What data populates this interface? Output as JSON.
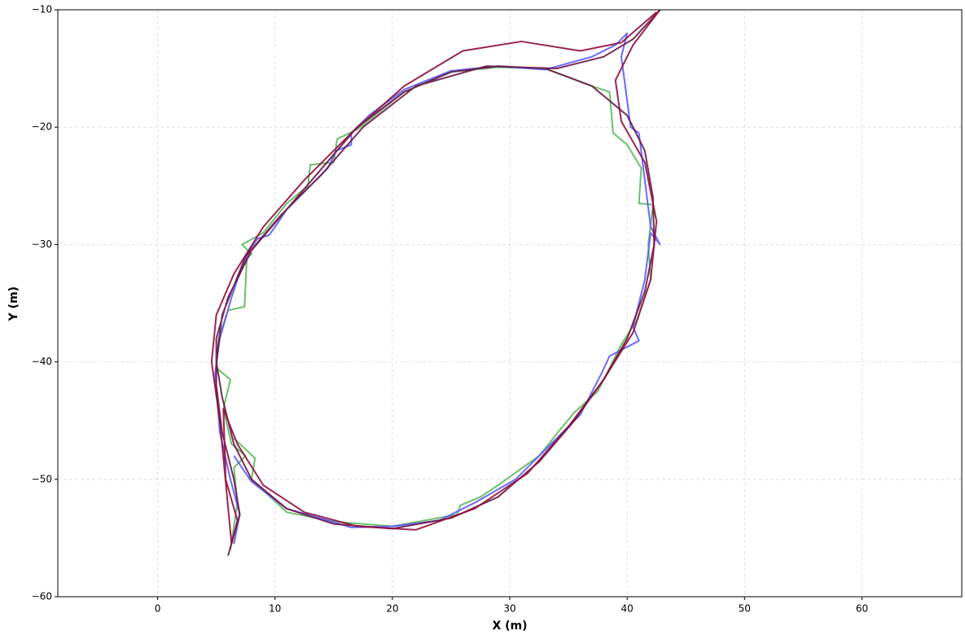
{
  "chart_data": {
    "type": "line",
    "xlabel": "X (m)",
    "ylabel": "Y (m)",
    "xlim": [
      -8.5,
      68.5
    ],
    "ylim": [
      -60,
      -10
    ],
    "xticks": [
      0,
      10,
      20,
      30,
      40,
      50,
      60
    ],
    "yticks": [
      {
        "value": -60,
        "label": "−60"
      },
      {
        "value": -50,
        "label": "−50"
      },
      {
        "value": -40,
        "label": "−40"
      },
      {
        "value": -30,
        "label": "−30"
      },
      {
        "value": -20,
        "label": "−20"
      },
      {
        "value": -10,
        "label": "−10"
      }
    ],
    "grid": true,
    "series": [
      {
        "color": "#5cb85c",
        "x": [
          6.2,
          6.8,
          6.5,
          7.5,
          6.3,
          5.6,
          6.2,
          5.0,
          5.2,
          6.0,
          7.4,
          7.6,
          8.0,
          7.2,
          9.0,
          11.0,
          12.8,
          13.0,
          15.0,
          15.3,
          17.0,
          21.0,
          25.0,
          29.0,
          33.0,
          37.0,
          38.5,
          38.8,
          40.0,
          41.2,
          41.0,
          42.2,
          41.8,
          42.0,
          40.8,
          39.5,
          37.5,
          35.5,
          34.5,
          32.5,
          29.0,
          27.5,
          25.8,
          25.5,
          20.0,
          15.0,
          11.0,
          8.0,
          8.3,
          6.5
        ],
        "values": [
          -56.0,
          -52.0,
          -49.0,
          -48.0,
          -47.0,
          -44.0,
          -41.5,
          -40.5,
          -38.0,
          -35.6,
          -35.3,
          -31.2,
          -30.8,
          -30.0,
          -29.0,
          -26.5,
          -25.0,
          -23.2,
          -23.0,
          -21.0,
          -20.2,
          -17.0,
          -15.3,
          -14.9,
          -15.0,
          -16.5,
          -17.0,
          -20.5,
          -21.5,
          -23.5,
          -26.5,
          -26.6,
          -30.0,
          -33.0,
          -36.5,
          -38.5,
          -42.5,
          -44.3,
          -45.5,
          -48.0,
          -50.5,
          -51.5,
          -52.2,
          -53.0,
          -54.0,
          -53.6,
          -52.8,
          -50.0,
          -48.2,
          -46.5
        ]
      },
      {
        "color": "#5a5aff",
        "x": [
          6.5,
          7.0,
          6.2,
          5.3,
          4.9,
          5.3,
          6.3,
          6.8,
          7.8,
          8.5,
          9.5,
          10.0,
          11.0,
          13.0,
          14.5,
          15.2,
          16.5,
          16.5,
          18.0,
          21.0,
          25.0,
          29.0,
          33.0,
          37.0,
          39.0,
          40.0,
          39.5,
          40.3,
          41.0,
          42.0,
          42.8,
          42.0,
          41.5,
          40.5,
          41.0,
          38.5,
          37.8,
          36.0,
          33.0,
          30.5,
          27.0,
          24.0,
          20.0,
          16.5,
          14.5,
          11.0,
          8.0,
          6.5
        ],
        "values": [
          -55.5,
          -53.0,
          -50.0,
          -46.0,
          -41.0,
          -38.0,
          -34.5,
          -33.0,
          -30.5,
          -29.5,
          -29.2,
          -28.5,
          -27.0,
          -25.0,
          -23.5,
          -22.0,
          -21.5,
          -20.5,
          -19.0,
          -16.8,
          -15.2,
          -14.8,
          -15.1,
          -14.0,
          -13.0,
          -12.0,
          -14.0,
          -20.0,
          -20.5,
          -28.5,
          -30.0,
          -29.0,
          -33.0,
          -37.0,
          -38.2,
          -39.5,
          -41.0,
          -44.5,
          -47.5,
          -50.0,
          -52.0,
          -53.5,
          -54.0,
          -54.1,
          -53.5,
          -52.5,
          -50.2,
          -48.0
        ]
      },
      {
        "color": "#6b1547",
        "x": [
          6.0,
          7.0,
          6.5,
          5.5,
          5.0,
          5.0,
          6.0,
          8.0,
          11.0,
          14.0,
          17.0,
          21.0,
          25.0,
          29.0,
          33.0,
          37.0,
          40.0,
          41.5,
          42.2,
          42.3,
          41.5,
          40.0,
          38.0,
          35.5,
          32.5,
          29.0,
          25.0,
          20.0,
          15.0,
          11.0,
          8.0,
          6.5,
          5.5,
          5.0,
          5.5,
          7.5,
          10.5,
          14.0,
          17.5,
          22.0,
          28.0,
          34.0,
          38.0,
          40.5,
          42.8
        ],
        "values": [
          -56.5,
          -53.0,
          -50.0,
          -46.0,
          -42.0,
          -38.0,
          -34.5,
          -30.5,
          -27.0,
          -23.5,
          -20.0,
          -17.0,
          -15.3,
          -14.8,
          -15.0,
          -16.5,
          -19.0,
          -22.0,
          -26.0,
          -30.0,
          -34.0,
          -38.0,
          -41.5,
          -45.0,
          -48.5,
          -51.5,
          -53.3,
          -54.2,
          -53.8,
          -52.5,
          -50.0,
          -47.0,
          -43.0,
          -40.0,
          -36.0,
          -31.0,
          -27.5,
          -24.0,
          -20.0,
          -16.5,
          -14.8,
          -15.0,
          -14.0,
          -12.5,
          -10.0
        ]
      },
      {
        "color": "#8e0f3d",
        "x": [
          42.8,
          40.5,
          39.0,
          39.5,
          41.5,
          42.5,
          42.0,
          40.5,
          38.0,
          35.0,
          31.5,
          27.0,
          22.0,
          17.0,
          12.5,
          9.0,
          6.8,
          5.6,
          5.8,
          6.8,
          6.3,
          5.3,
          4.6,
          5.0,
          6.5,
          9.0,
          12.5,
          16.5,
          21.0,
          26.0,
          31.0,
          36.0,
          39.5,
          42.5
        ],
        "values": [
          -10.0,
          -13.0,
          -16.0,
          -19.5,
          -23.0,
          -28.0,
          -33.0,
          -37.5,
          -41.5,
          -45.5,
          -49.5,
          -52.5,
          -54.3,
          -54.0,
          -52.8,
          -50.5,
          -47.0,
          -44.0,
          -50.0,
          -53.5,
          -55.5,
          -45.0,
          -40.0,
          -36.0,
          -32.5,
          -28.5,
          -24.5,
          -20.5,
          -16.5,
          -13.5,
          -12.7,
          -13.5,
          -12.8,
          -10.2
        ]
      }
    ]
  }
}
